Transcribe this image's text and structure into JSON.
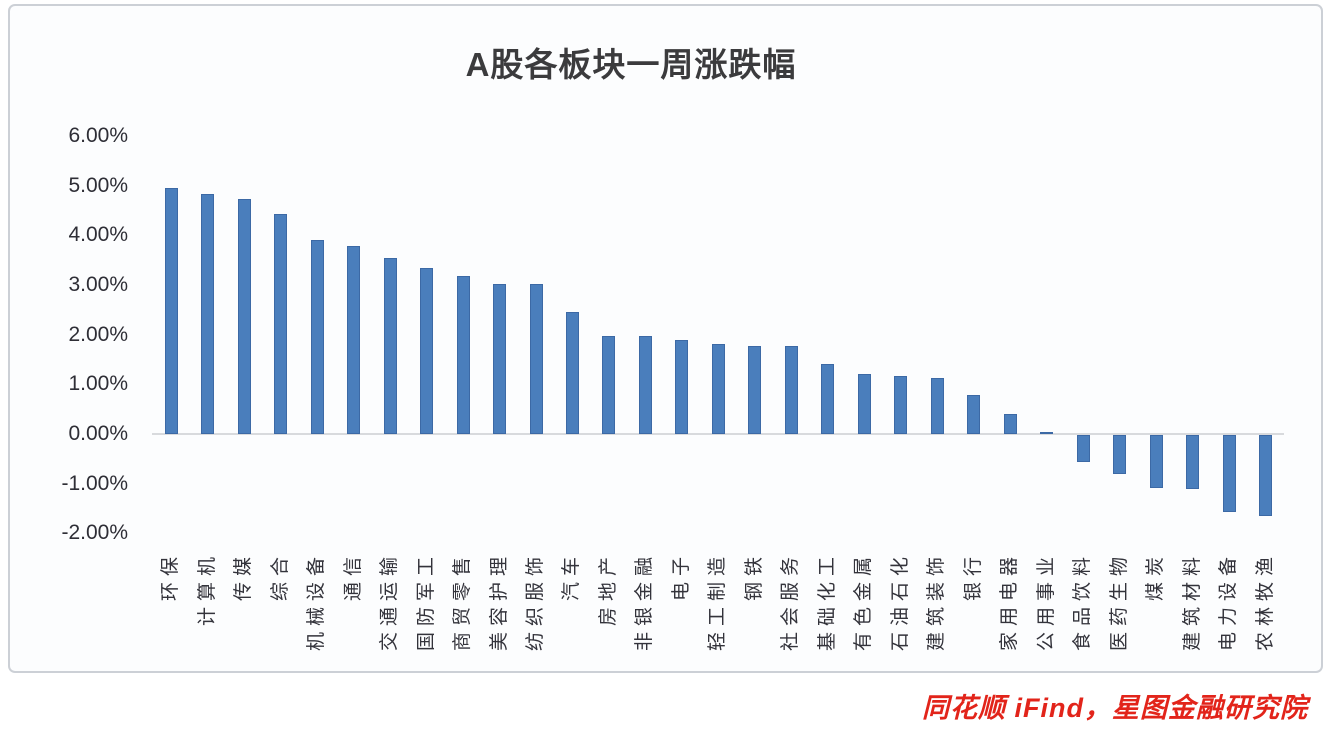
{
  "chart": {
    "title": "A股各板块一周涨跌幅",
    "source_note": "同花顺 iFind，星图金融研究院"
  },
  "chart_data": {
    "type": "bar",
    "title": "A股各板块一周涨跌幅",
    "categories": [
      "环保",
      "计算机",
      "传媒",
      "综合",
      "机械设备",
      "通信",
      "交通运输",
      "国防军工",
      "商贸零售",
      "美容护理",
      "纺织服饰",
      "汽车",
      "房地产",
      "非银金融",
      "电子",
      "轻工制造",
      "钢铁",
      "社会服务",
      "基础化工",
      "有色金属",
      "石油石化",
      "建筑装饰",
      "银行",
      "家用电器",
      "公用事业",
      "食品饮料",
      "医药生物",
      "煤炭",
      "建筑材料",
      "电力设备",
      "农林牧渔"
    ],
    "values": [
      4.95,
      4.83,
      4.72,
      4.43,
      3.9,
      3.78,
      3.54,
      3.33,
      3.17,
      3.02,
      3.02,
      2.45,
      1.98,
      1.97,
      1.9,
      1.82,
      1.78,
      1.77,
      1.41,
      1.2,
      1.17,
      1.12,
      0.79,
      0.4,
      0.04,
      -0.54,
      -0.79,
      -1.07,
      -1.09,
      -1.55,
      -1.63
    ],
    "unit": "%",
    "xlabel": "",
    "ylabel": "",
    "ylim": [
      -2,
      6
    ],
    "ytick_step": 1,
    "ytick_labels": [
      "6.00%",
      "5.00%",
      "4.00%",
      "3.00%",
      "2.00%",
      "1.00%",
      "0.00%",
      "-1.00%",
      "-2.00%"
    ],
    "ytick_values": [
      6,
      5,
      4,
      3,
      2,
      1,
      0,
      -1,
      -2
    ],
    "grid": false,
    "legend": "none",
    "bar_color": "#4A7EBC",
    "bar_border_color": "#3C69A5",
    "axis_line_color": "#D8DADD",
    "label_color": "#33333B",
    "title_color": "#3B3B3D",
    "source_color": "#E2241A"
  }
}
